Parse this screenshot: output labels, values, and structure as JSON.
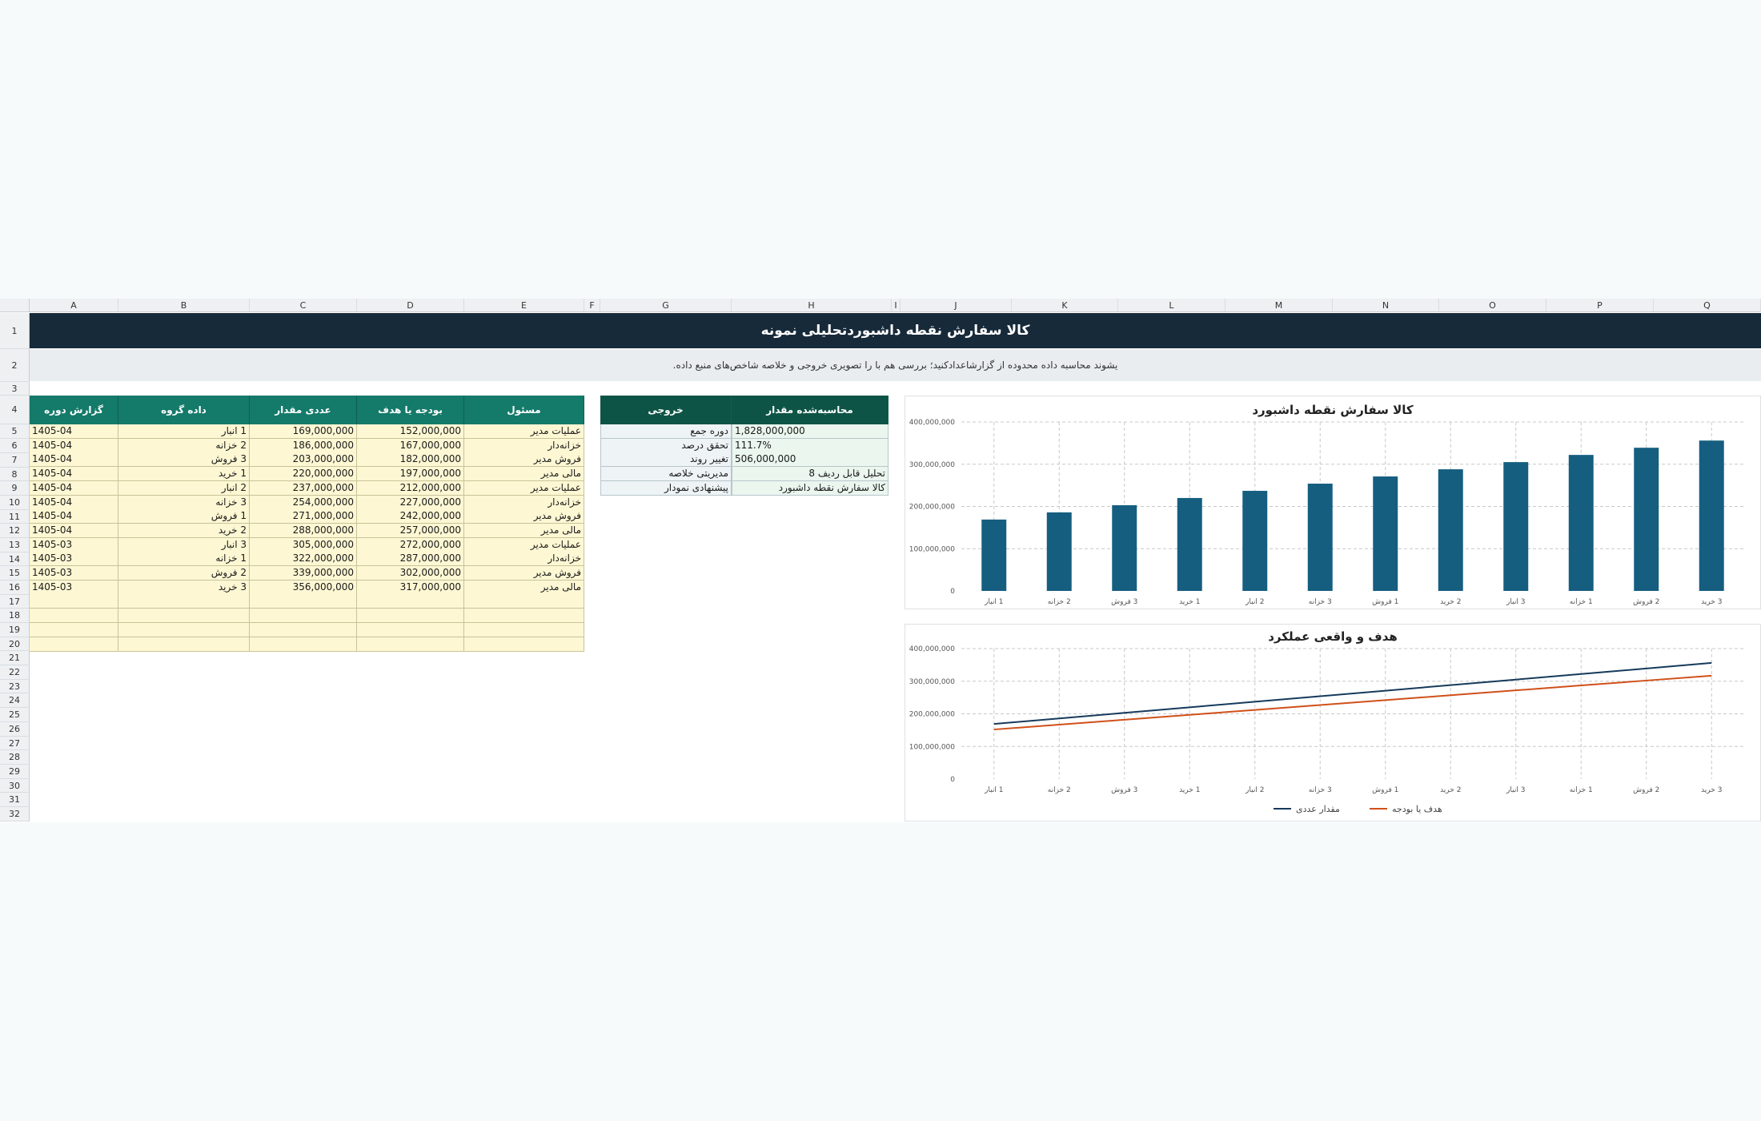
{
  "sheet": {
    "columns": [
      "A",
      "B",
      "C",
      "D",
      "E",
      "F",
      "G",
      "H",
      "I",
      "J",
      "K",
      "L",
      "M",
      "N",
      "O",
      "P",
      "Q"
    ],
    "title": "کالا سفارش نقطه داشبوردتحلیلی نمونه",
    "subtitle": ".یشوند محاسبه داده محدوده از گزارشاعدادکنید؛ بررسی هم با را تصویری خروجی و خلاصه شاخص‌های منبع داده"
  },
  "data_table": {
    "headers": [
      "گزارش دوره",
      "داده گروه",
      "عددی مقدار",
      "بودجه یا هدف",
      "مسئول"
    ],
    "rows": [
      [
        "1405-04",
        "1 انبار",
        "169,000,000",
        "152,000,000",
        "عملیات مدیر"
      ],
      [
        "1405-04",
        "2 خزانه",
        "186,000,000",
        "167,000,000",
        "خزانه‌دار"
      ],
      [
        "1405-04",
        "3 فروش",
        "203,000,000",
        "182,000,000",
        "فروش مدیر"
      ],
      [
        "1405-04",
        "1 خرید",
        "220,000,000",
        "197,000,000",
        "مالی مدیر"
      ],
      [
        "1405-04",
        "2 انبار",
        "237,000,000",
        "212,000,000",
        "عملیات مدیر"
      ],
      [
        "1405-04",
        "3 خزانه",
        "254,000,000",
        "227,000,000",
        "خزانه‌دار"
      ],
      [
        "1405-04",
        "1 فروش",
        "271,000,000",
        "242,000,000",
        "فروش مدیر"
      ],
      [
        "1405-04",
        "2 خرید",
        "288,000,000",
        "257,000,000",
        "مالی مدیر"
      ],
      [
        "1405-03",
        "3 انبار",
        "305,000,000",
        "272,000,000",
        "عملیات مدیر"
      ],
      [
        "1405-03",
        "1 خزانه",
        "322,000,000",
        "287,000,000",
        "خزانه‌دار"
      ],
      [
        "1405-03",
        "2 فروش",
        "339,000,000",
        "302,000,000",
        "فروش مدیر"
      ],
      [
        "1405-03",
        "3 خرید",
        "356,000,000",
        "317,000,000",
        "مالی مدیر"
      ]
    ]
  },
  "summary_table": {
    "headers": [
      "خروجی",
      "محاسبه‌شده مقدار"
    ],
    "rows": [
      [
        "دوره جمع",
        "1,828,000,000"
      ],
      [
        "تحقق درصد",
        "111.7%"
      ],
      [
        "تغییر روند",
        "506,000,000"
      ],
      [
        "مدیریتی خلاصه",
        "تحلیل قابل ردیف 8"
      ],
      [
        "پیشنهادی نمودار",
        "کالا سفارش نقطه داشبورد"
      ]
    ]
  },
  "colors": {
    "title_bar": "#172a3a",
    "table_header": "#147a6a",
    "summary_header": "#0e5446",
    "bar": "#155e80",
    "line_actual": "#163a5c",
    "line_budget": "#d0501a",
    "input_cell": "#fdf7d3",
    "summary_cell": "#eaf6ee"
  },
  "chart_data": [
    {
      "type": "bar",
      "title": "کالا سفارش نقطه داشبورد",
      "categories": [
        "1 انبار",
        "2 خزانه",
        "3 فروش",
        "1 خرید",
        "2 انبار",
        "3 خزانه",
        "1 فروش",
        "2 خرید",
        "3 انبار",
        "1 خزانه",
        "2 فروش",
        "3 خرید"
      ],
      "values": [
        169000000,
        186000000,
        203000000,
        220000000,
        237000000,
        254000000,
        271000000,
        288000000,
        305000000,
        322000000,
        339000000,
        356000000
      ],
      "ylim": [
        0,
        400000000
      ],
      "yticks": [
        "0",
        "100,000,000",
        "200,000,000",
        "300,000,000",
        "400,000,000"
      ],
      "grid": true
    },
    {
      "type": "line",
      "title": "هدف و واقعی عملکرد",
      "categories": [
        "1 انبار",
        "2 خزانه",
        "3 فروش",
        "1 خرید",
        "2 انبار",
        "3 خزانه",
        "1 فروش",
        "2 خرید",
        "3 انبار",
        "1 خزانه",
        "2 فروش",
        "3 خرید"
      ],
      "series": [
        {
          "name": "مقدار عددی",
          "values": [
            169000000,
            186000000,
            203000000,
            220000000,
            237000000,
            254000000,
            271000000,
            288000000,
            305000000,
            322000000,
            339000000,
            356000000
          ]
        },
        {
          "name": "هدف یا بودجه",
          "values": [
            152000000,
            167000000,
            182000000,
            197000000,
            212000000,
            227000000,
            242000000,
            257000000,
            272000000,
            287000000,
            302000000,
            317000000
          ]
        }
      ],
      "ylim": [
        0,
        400000000
      ],
      "yticks": [
        "0",
        "100,000,000",
        "200,000,000",
        "300,000,000",
        "400,000,000"
      ],
      "grid": true,
      "legend": "bottom"
    }
  ]
}
